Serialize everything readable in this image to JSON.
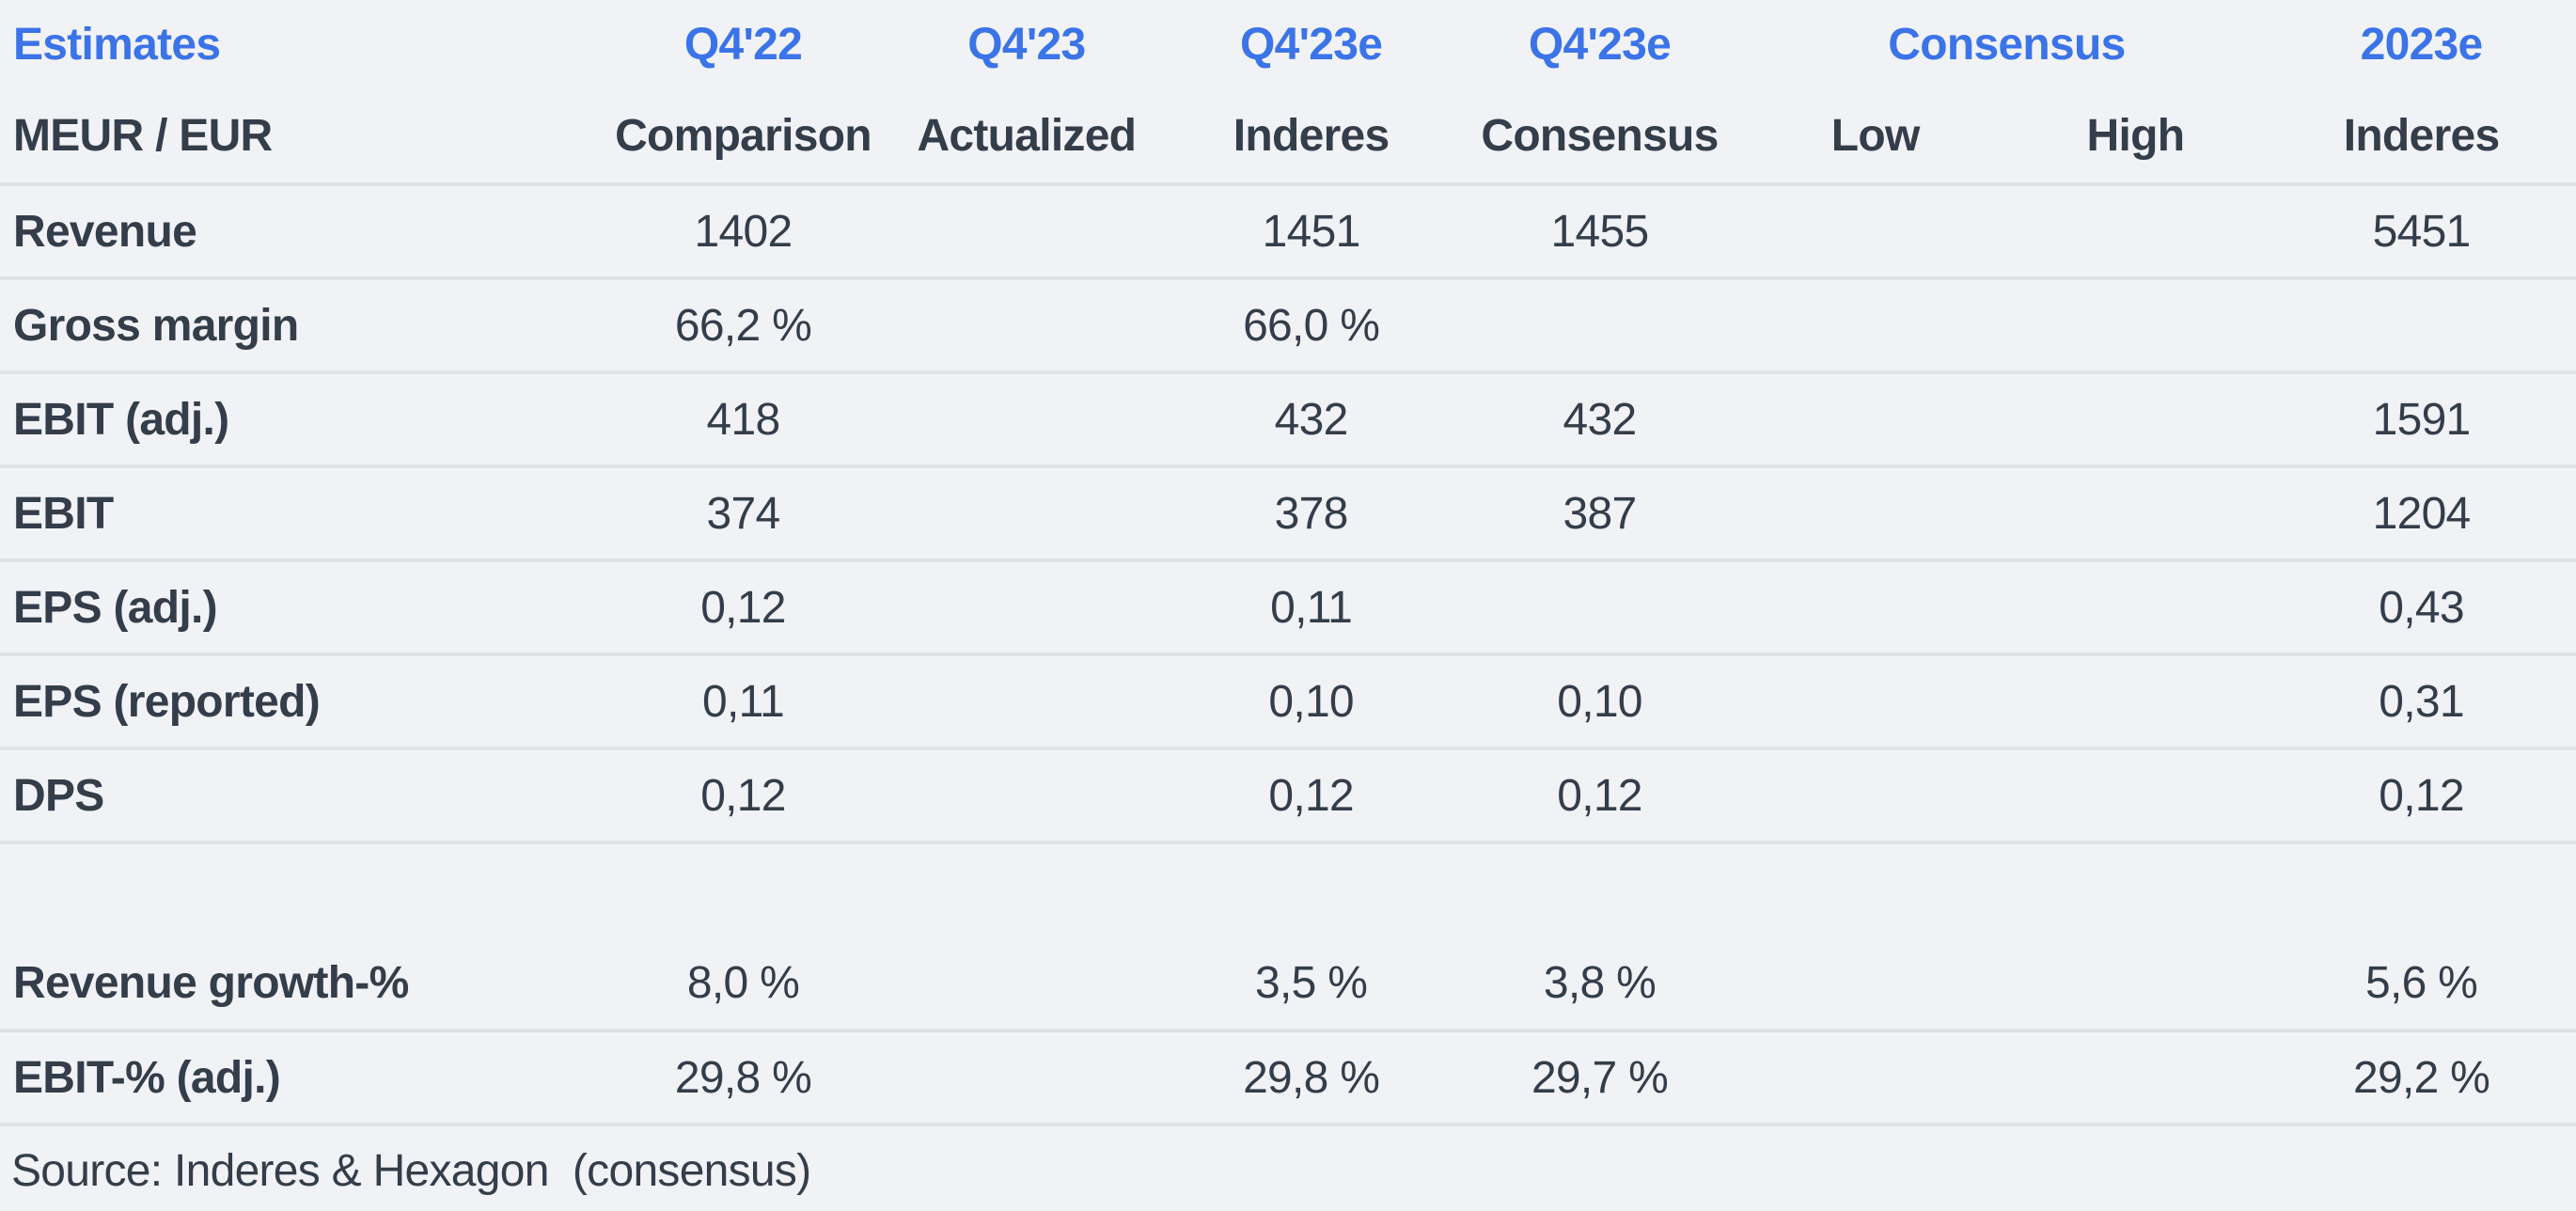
{
  "colors": {
    "background": "#f1f2f6",
    "divider": "#e0e1e5",
    "text": "#343d4a",
    "accent_blue": "#3b73e8"
  },
  "table": {
    "header_periods": {
      "estimates": "Estimates",
      "q4_22": "Q4'22",
      "q4_23": "Q4'23",
      "q4_23e_inderes": "Q4'23e",
      "q4_23e_consensus": "Q4'23e",
      "consensus_span": "Consensus",
      "y2023e": "2023e"
    },
    "header_labels": {
      "unit": "MEUR / EUR",
      "comparison": "Comparison",
      "actualized": "Actualized",
      "inderes": "Inderes",
      "consensus": "Consensus",
      "low": "Low",
      "high": "High",
      "inderes_2023": "Inderes"
    },
    "rows": [
      {
        "label": "Revenue",
        "values": [
          "1402",
          "",
          "1451",
          "1455",
          "",
          "",
          "5451"
        ]
      },
      {
        "label": "Gross margin",
        "values": [
          "66,2 %",
          "",
          "66,0 %",
          "",
          "",
          "",
          ""
        ]
      },
      {
        "label": "EBIT (adj.)",
        "values": [
          "418",
          "",
          "432",
          "432",
          "",
          "",
          "1591"
        ]
      },
      {
        "label": "EBIT",
        "values": [
          "374",
          "",
          "378",
          "387",
          "",
          "",
          "1204"
        ]
      },
      {
        "label": "EPS (adj.)",
        "values": [
          "0,12",
          "",
          "0,11",
          "",
          "",
          "",
          "0,43"
        ]
      },
      {
        "label": "EPS (reported)",
        "values": [
          "0,11",
          "",
          "0,10",
          "0,10",
          "",
          "",
          "0,31"
        ]
      },
      {
        "label": "DPS",
        "values": [
          "0,12",
          "",
          "0,12",
          "0,12",
          "",
          "",
          "0,12"
        ]
      },
      {
        "label": "Revenue growth-%",
        "values": [
          "8,0 %",
          "",
          "3,5 %",
          "3,8 %",
          "",
          "",
          "5,6 %"
        ]
      },
      {
        "label": "EBIT-% (adj.)",
        "values": [
          "29,8 %",
          "",
          "29,8 %",
          "29,7 %",
          "",
          "",
          "29,2 %"
        ]
      }
    ],
    "source": "Source: Inderes & Hexagon  (consensus)"
  }
}
